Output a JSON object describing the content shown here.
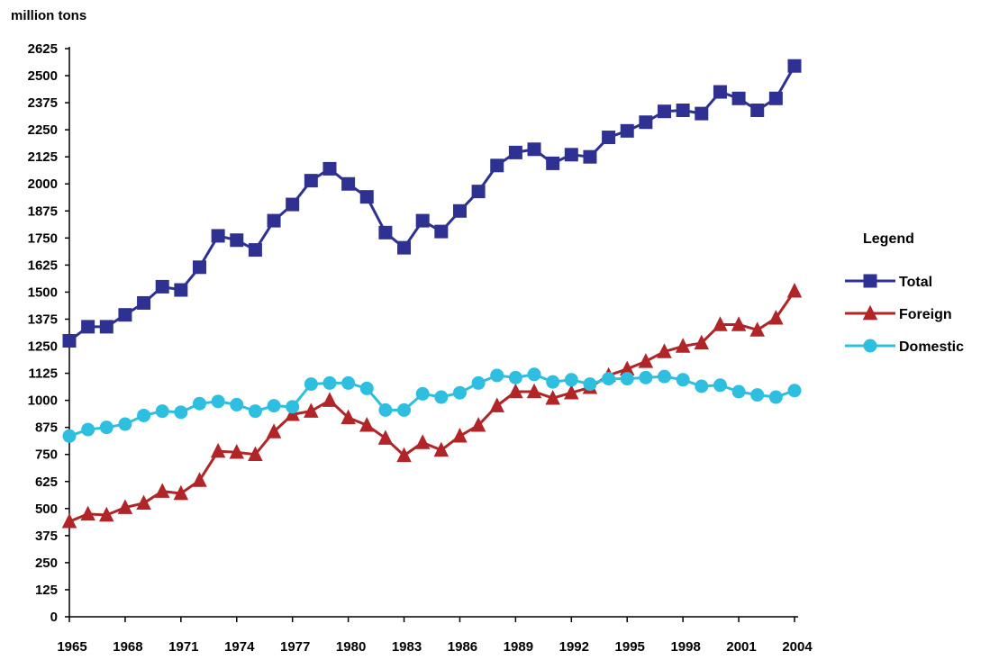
{
  "chart_data": {
    "type": "line",
    "unit_label": "million tons",
    "x": [
      1965,
      1966,
      1967,
      1968,
      1969,
      1970,
      1971,
      1972,
      1973,
      1974,
      1975,
      1976,
      1977,
      1978,
      1979,
      1980,
      1981,
      1982,
      1983,
      1984,
      1985,
      1986,
      1987,
      1988,
      1989,
      1990,
      1991,
      1992,
      1993,
      1994,
      1995,
      1996,
      1997,
      1998,
      1999,
      2000,
      2001,
      2002,
      2003,
      2004
    ],
    "x_tick_labels": [
      "1965",
      "1968",
      "1971",
      "1974",
      "1977",
      "1980",
      "1983",
      "1986",
      "1989",
      "1992",
      "1995",
      "1998",
      "2001",
      "2004"
    ],
    "y_tick_labels": [
      "0",
      "125",
      "250",
      "375",
      "500",
      "625",
      "750",
      "875",
      "1000",
      "1125",
      "1250",
      "1375",
      "1500",
      "1625",
      "1750",
      "1875",
      "2000",
      "2125",
      "2250",
      "2375",
      "2500",
      "2625"
    ],
    "ylim": [
      0,
      2625
    ],
    "xlim": [
      1965,
      2004
    ],
    "legend_title": "Legend",
    "legend_position": "right",
    "grid": false,
    "series": [
      {
        "name": "Total",
        "color": "#2E3192",
        "marker": "square",
        "values": [
          1275,
          1340,
          1340,
          1395,
          1450,
          1525,
          1510,
          1615,
          1760,
          1740,
          1695,
          1830,
          1905,
          2015,
          2070,
          2000,
          1940,
          1775,
          1705,
          1830,
          1780,
          1875,
          1965,
          2085,
          2145,
          2160,
          2095,
          2135,
          2125,
          2215,
          2245,
          2285,
          2335,
          2340,
          2325,
          2425,
          2395,
          2340,
          2395,
          2545
        ]
      },
      {
        "name": "Foreign",
        "color": "#B12428",
        "marker": "triangle",
        "values": [
          440,
          475,
          470,
          505,
          525,
          580,
          570,
          630,
          765,
          760,
          750,
          855,
          935,
          950,
          1000,
          920,
          885,
          825,
          745,
          805,
          770,
          835,
          885,
          975,
          1040,
          1040,
          1010,
          1035,
          1060,
          1115,
          1145,
          1180,
          1225,
          1250,
          1265,
          1350,
          1350,
          1325,
          1380,
          1505
        ]
      },
      {
        "name": "Domestic",
        "color": "#2EBFE0",
        "marker": "circle",
        "values": [
          835,
          865,
          875,
          890,
          930,
          950,
          945,
          985,
          995,
          980,
          950,
          975,
          970,
          1075,
          1080,
          1080,
          1055,
          955,
          955,
          1030,
          1015,
          1035,
          1080,
          1115,
          1105,
          1120,
          1085,
          1095,
          1075,
          1100,
          1100,
          1105,
          1110,
          1095,
          1065,
          1070,
          1040,
          1025,
          1015,
          1045
        ]
      }
    ]
  }
}
